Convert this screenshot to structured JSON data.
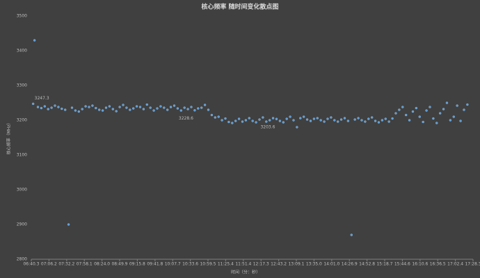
{
  "chart_data": {
    "type": "scatter",
    "title": "核心频率 随时间变化散点图",
    "x_label": "时间（分：秒）",
    "y_label": "核心频率（MHz）",
    "series": [
      {
        "name": "核心频率",
        "color": "#5b9bd5",
        "x": [
          403,
          405,
          410,
          415,
          420,
          425,
          430,
          435,
          440,
          445,
          450,
          455,
          460,
          465,
          470,
          475,
          480,
          485,
          490,
          495,
          500,
          505,
          510,
          515,
          520,
          525,
          530,
          535,
          540,
          545,
          550,
          555,
          560,
          565,
          570,
          575,
          580,
          585,
          590,
          595,
          600,
          605,
          610,
          615,
          620,
          625,
          630,
          635,
          640,
          645,
          650,
          655,
          660,
          665,
          670,
          675,
          680,
          685,
          690,
          695,
          700,
          705,
          710,
          715,
          720,
          725,
          730,
          735,
          740,
          745,
          750,
          755,
          760,
          765,
          770,
          775,
          780,
          785,
          790,
          795,
          800,
          805,
          810,
          815,
          820,
          825,
          830,
          835,
          840,
          845,
          850,
          855,
          860,
          865,
          870,
          875,
          880,
          885,
          890,
          895,
          900,
          905,
          910,
          915,
          920,
          925,
          930,
          935,
          940,
          945,
          950,
          955,
          960,
          965,
          970,
          975,
          980,
          985,
          990,
          995,
          1000,
          1005,
          1010,
          1015,
          1020,
          1025,
          1030,
          1035,
          1040
        ],
        "values": [
          3247.3,
          3430,
          3238,
          3235,
          3240,
          3232,
          3236,
          3242,
          3238,
          3233,
          3230,
          2900,
          3236,
          3228,
          3225,
          3232,
          3240,
          3238,
          3242,
          3235,
          3230,
          3228,
          3236,
          3240,
          3232,
          3226,
          3238,
          3244,
          3236,
          3230,
          3234,
          3240,
          3238,
          3232,
          3245,
          3236,
          3228,
          3234,
          3240,
          3236,
          3230,
          3238,
          3242,
          3234,
          3228,
          3236,
          3232,
          3238,
          3228.6,
          3234,
          3236,
          3244,
          3230,
          3215,
          3208,
          3210,
          3200,
          3205,
          3195,
          3192,
          3198,
          3204,
          3196,
          3200,
          3206,
          3198,
          3194,
          3202,
          3208,
          3196,
          3200,
          3206,
          3203.6,
          3198,
          3194,
          3204,
          3210,
          3200,
          3180,
          3206,
          3210,
          3202,
          3198,
          3204,
          3206,
          3200,
          3196,
          3204,
          3208,
          3200,
          3196,
          3202,
          3206,
          3198,
          2870,
          3202,
          3206,
          3200,
          3196,
          3204,
          3208,
          3198,
          3194,
          3200,
          3204,
          3196,
          3205,
          3220,
          3230,
          3238,
          3215,
          3200,
          3225,
          3235,
          3210,
          3195,
          3228,
          3238,
          3205,
          3192,
          3220,
          3232,
          3250,
          3200,
          3210,
          3242,
          3198,
          3230,
          3245
        ],
        "value_labels": [
          "3247.3",
          null,
          null,
          null,
          null,
          null,
          null,
          null,
          null,
          null,
          null,
          null,
          null,
          null,
          null,
          null,
          null,
          null,
          null,
          null,
          null,
          null,
          null,
          null,
          null,
          null,
          null,
          null,
          null,
          null,
          null,
          null,
          null,
          null,
          null,
          null,
          null,
          null,
          null,
          null,
          null,
          null,
          null,
          null,
          null,
          null,
          null,
          null,
          "3228.6",
          null,
          null,
          null,
          null,
          null,
          null,
          null,
          null,
          null,
          null,
          null,
          null,
          null,
          null,
          null,
          null,
          null,
          null,
          null,
          null,
          null,
          null,
          null,
          "3203.6",
          null,
          null,
          null,
          null,
          null,
          null,
          null,
          null,
          null,
          null,
          null,
          null,
          null,
          null,
          null,
          null,
          null,
          null,
          null,
          null,
          null,
          null,
          null,
          null,
          null,
          null,
          null,
          null,
          null,
          null,
          null,
          null,
          null,
          null,
          null,
          null,
          null,
          null,
          null,
          null,
          null,
          null,
          null,
          null,
          null,
          null,
          null,
          null,
          null,
          null,
          null,
          null,
          null,
          null,
          null,
          null
        ]
      }
    ],
    "xlim": [
      400.3,
      1048.3
    ],
    "xticks": [
      {
        "value": 400.3,
        "label": "06:40.3"
      },
      {
        "value": 426.2,
        "label": "07:06.2"
      },
      {
        "value": 452.2,
        "label": "07:32.2"
      },
      {
        "value": 478.1,
        "label": "07:58.1"
      },
      {
        "value": 504.0,
        "label": "08:24.0"
      },
      {
        "value": 529.9,
        "label": "08:49.9"
      },
      {
        "value": 555.8,
        "label": "09:15.8"
      },
      {
        "value": 581.8,
        "label": "09:41.8"
      },
      {
        "value": 607.7,
        "label": "10:07.7"
      },
      {
        "value": 633.6,
        "label": "10:33.6"
      },
      {
        "value": 659.5,
        "label": "10:59.5"
      },
      {
        "value": 685.4,
        "label": "11:25.4"
      },
      {
        "value": 711.4,
        "label": "11:51.4"
      },
      {
        "value": 737.3,
        "label": "12:17.3"
      },
      {
        "value": 763.2,
        "label": "12:43.2"
      },
      {
        "value": 789.1,
        "label": "13:09.1"
      },
      {
        "value": 815.0,
        "label": "13:35.0"
      },
      {
        "value": 841.0,
        "label": "14:01.0"
      },
      {
        "value": 866.9,
        "label": "14:26.9"
      },
      {
        "value": 892.8,
        "label": "14:52.8"
      },
      {
        "value": 918.7,
        "label": "15:18.7"
      },
      {
        "value": 944.6,
        "label": "15:44.6"
      },
      {
        "value": 970.6,
        "label": "16:10.6"
      },
      {
        "value": 996.5,
        "label": "16:36.5"
      },
      {
        "value": 1022.4,
        "label": "17:02.4"
      },
      {
        "value": 1048.3,
        "label": "17:28.3"
      }
    ],
    "ylim": [
      2800,
      3500
    ],
    "yticks": [
      2800,
      2900,
      3000,
      3100,
      3200,
      3300,
      3400,
      3500
    ],
    "grid": false
  }
}
